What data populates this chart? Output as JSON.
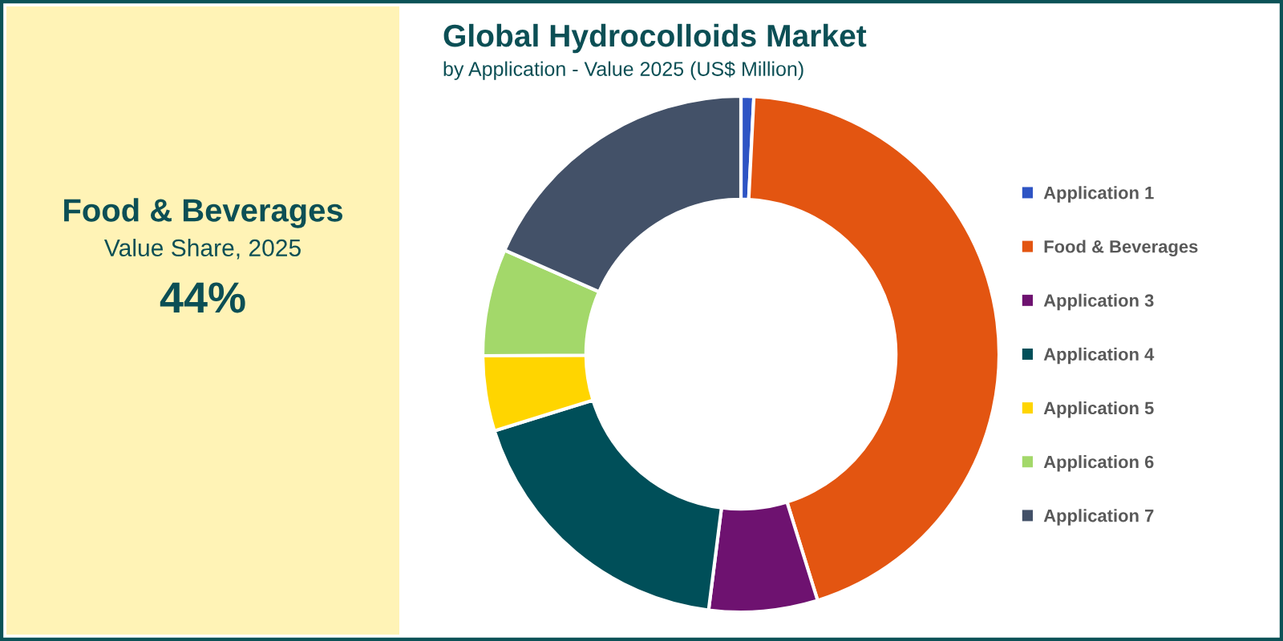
{
  "chart_data": [
    {
      "type": "other",
      "title": "Food & Beverages",
      "subtitle": "Value Share, 2025",
      "annotations": [
        "44%"
      ]
    },
    {
      "type": "donut",
      "title": "Global Hydrocolloids Market",
      "subtitle": "by Application - Value 2025 (US$ Million)",
      "categories": [
        "Application 1",
        "Food & Beverages",
        "Application 3",
        "Application 4",
        "Application 5",
        "Application 6",
        "Application 7"
      ],
      "values": [
        0.8,
        44.4,
        6.8,
        18.2,
        4.7,
        6.7,
        18.4
      ],
      "colors": [
        "#2e54c4",
        "#e35511",
        "#6e1270",
        "#004f59",
        "#ffd500",
        "#a3d86a",
        "#435168"
      ],
      "legend": "right"
    }
  ]
}
